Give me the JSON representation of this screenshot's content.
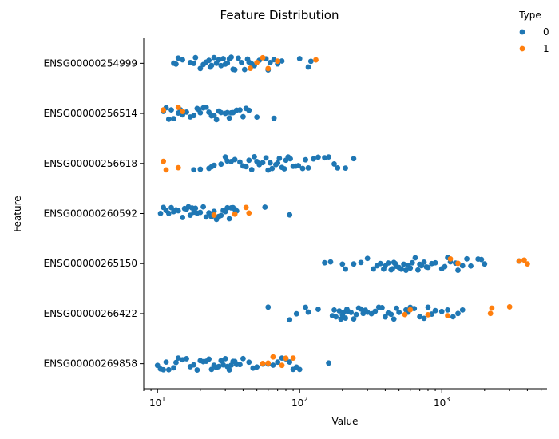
{
  "chart_data": {
    "type": "scatter",
    "subtype": "strip",
    "title": "Feature Distribution",
    "xlabel": "Value",
    "ylabel": "Feature",
    "xscale": "log",
    "xlim": [
      8.0,
      5500
    ],
    "x_ticks": [
      {
        "value": 10,
        "base": "10",
        "exp": "1"
      },
      {
        "value": 100,
        "base": "10",
        "exp": "2"
      },
      {
        "value": 1000,
        "base": "10",
        "exp": "3"
      }
    ],
    "categories": [
      "ENSG00000254999",
      "ENSG00000256514",
      "ENSG00000256618",
      "ENSG00000260592",
      "ENSG00000265150",
      "ENSG00000266422",
      "ENSG00000269858"
    ],
    "legend": {
      "title": "Type",
      "placement": "top-right outside",
      "entries": [
        {
          "label": "0",
          "color": "#1f77b4"
        },
        {
          "label": "1",
          "color": "#ff7f0e"
        }
      ]
    },
    "grid": false,
    "series": [
      {
        "name": "0",
        "color": "#1f77b4",
        "points": [
          {
            "category": 0,
            "values": [
              13,
              13.5,
              14,
              15,
              17,
              18,
              18.5,
              20,
              21,
              22,
              23,
              23.5,
              24,
              25,
              26,
              27,
              28,
              29,
              30,
              31,
              32,
              33,
              34,
              35,
              37,
              39,
              41,
              43,
              44,
              46,
              48,
              52,
              58,
              60,
              62,
              66,
              70,
              75,
              100,
              115,
              120
            ]
          },
          {
            "category": 1,
            "values": [
              11,
              11.5,
              12,
              12.5,
              13,
              14,
              14.5,
              15,
              16,
              17,
              18,
              19,
              19.5,
              20,
              21,
              22,
              23,
              24,
              25,
              26,
              27,
              28,
              30,
              31,
              32,
              33,
              34,
              36,
              38,
              40,
              42,
              44,
              50,
              66
            ]
          },
          {
            "category": 2,
            "values": [
              18,
              20,
              23,
              24,
              25,
              28,
              30,
              31,
              33,
              35,
              38,
              40,
              42,
              44,
              46,
              48,
              50,
              52,
              55,
              58,
              60,
              62,
              64,
              68,
              70,
              72,
              75,
              78,
              80,
              83,
              86,
              90,
              94,
              98,
              105,
              110,
              115,
              125,
              135,
              150,
              160,
              175,
              185,
              210,
              240
            ]
          },
          {
            "category": 3,
            "values": [
              10.5,
              11,
              11.5,
              12,
              12.5,
              13,
              13.5,
              14,
              15,
              15.5,
              16,
              16.5,
              17,
              17.5,
              18,
              18.5,
              19,
              20,
              21,
              22,
              23,
              24,
              25,
              26,
              27,
              28,
              29,
              30,
              31,
              32,
              33,
              34,
              35,
              36,
              57,
              85
            ]
          },
          {
            "category": 4,
            "values": [
              150,
              165,
              200,
              210,
              240,
              270,
              300,
              330,
              350,
              370,
              390,
              400,
              420,
              440,
              450,
              460,
              470,
              480,
              500,
              520,
              540,
              560,
              580,
              600,
              620,
              650,
              680,
              700,
              720,
              750,
              780,
              800,
              850,
              900,
              1000,
              1050,
              1100,
              1150,
              1250,
              1300,
              1400,
              1500,
              1600,
              1800,
              1900,
              2000,
              3500
            ]
          },
          {
            "category": 5,
            "values": [
              60,
              85,
              95,
              110,
              115,
              135,
              170,
              175,
              180,
              190,
              195,
              200,
              205,
              210,
              215,
              220,
              230,
              240,
              250,
              260,
              270,
              280,
              290,
              300,
              320,
              340,
              360,
              380,
              400,
              420,
              440,
              460,
              480,
              500,
              560,
              580,
              600,
              640,
              700,
              750,
              800,
              850,
              900,
              1000,
              1100,
              1200,
              1300,
              1400
            ]
          },
          {
            "category": 6,
            "values": [
              10,
              10.5,
              11,
              11.5,
              12,
              13,
              13.5,
              14,
              15,
              16,
              17,
              18,
              19,
              20,
              21,
              22,
              23,
              24,
              25,
              26,
              27,
              28,
              29,
              30,
              31,
              32,
              33,
              34,
              35,
              36,
              38,
              40,
              44,
              47,
              50,
              55,
              60,
              65,
              70,
              75,
              80,
              85,
              90,
              95,
              100,
              160
            ]
          }
        ]
      },
      {
        "name": "1",
        "color": "#ff7f0e",
        "points": [
          {
            "category": 0,
            "values": [
              45,
              50,
              55,
              60,
              70,
              130
            ]
          },
          {
            "category": 1,
            "values": [
              11,
              14,
              15
            ]
          },
          {
            "category": 2,
            "values": [
              11,
              11.5,
              14
            ]
          },
          {
            "category": 3,
            "values": [
              25,
              35,
              42,
              44
            ]
          },
          {
            "category": 4,
            "values": [
              1150,
              1300,
              3500,
              3800,
              4000
            ]
          },
          {
            "category": 5,
            "values": [
              550,
              600,
              800,
              1100,
              2200,
              2250,
              3000
            ]
          },
          {
            "category": 6,
            "values": [
              55,
              60,
              65,
              75,
              80,
              90
            ]
          }
        ]
      }
    ]
  }
}
